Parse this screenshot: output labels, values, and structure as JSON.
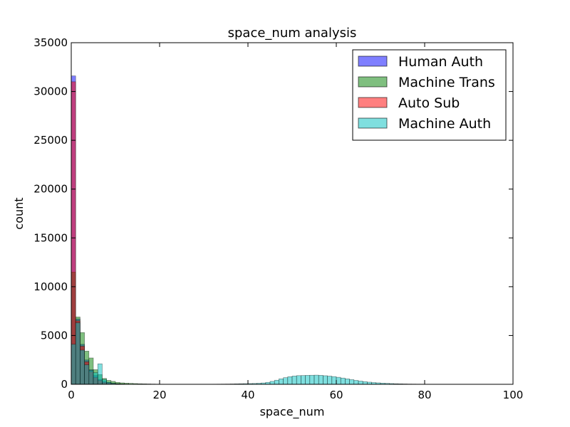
{
  "chart_data": {
    "type": "histogram",
    "title": "space_num analysis",
    "xlabel": "space_num",
    "ylabel": "count",
    "xlim": [
      0,
      100
    ],
    "ylim": [
      0,
      35000
    ],
    "x_ticks": [
      "0",
      "20",
      "40",
      "60",
      "80",
      "100"
    ],
    "y_ticks": [
      "0",
      "5000",
      "10000",
      "15000",
      "20000",
      "25000",
      "30000",
      "35000"
    ],
    "grid": false,
    "legend_position": "top-right",
    "bin_width": 1,
    "bin_starts": [
      0,
      1,
      2,
      3,
      4,
      5,
      6,
      7,
      8,
      9,
      10,
      11,
      12,
      13,
      14,
      15,
      16,
      17,
      18,
      19,
      20,
      21,
      22,
      23,
      24,
      25,
      26,
      27,
      28,
      29,
      30,
      31,
      32,
      33,
      34,
      35,
      36,
      37,
      38,
      39,
      40,
      41,
      42,
      43,
      44,
      45,
      46,
      47,
      48,
      49,
      50,
      51,
      52,
      53,
      54,
      55,
      56,
      57,
      58,
      59,
      60,
      61,
      62,
      63,
      64,
      65,
      66,
      67,
      68,
      69,
      70,
      71,
      72,
      73,
      74,
      75,
      76,
      77,
      78,
      79,
      80,
      81,
      82,
      83,
      84,
      85,
      86,
      87,
      88,
      89,
      90,
      91,
      92,
      93,
      94,
      95,
      96,
      97,
      98,
      99
    ],
    "series": [
      {
        "name": "Human Auth",
        "color": "#0000ff",
        "values": [
          31600,
          6700,
          4100,
          2500,
          1500,
          900,
          500,
          300,
          180,
          110,
          70,
          40,
          25,
          15,
          10,
          6,
          4,
          3,
          2,
          1,
          0,
          0,
          0,
          0,
          0,
          0,
          0,
          0,
          0,
          0,
          0,
          0,
          0,
          0,
          0,
          0,
          0,
          0,
          0,
          0,
          0,
          0,
          0,
          0,
          0,
          0,
          0,
          0,
          0,
          0,
          0,
          0,
          0,
          0,
          0,
          0,
          0,
          0,
          0,
          0,
          0,
          0,
          0,
          0,
          0,
          0,
          0,
          0,
          0,
          0,
          0,
          0,
          0,
          0,
          0,
          0,
          0,
          0,
          0,
          0,
          0,
          0,
          0,
          0,
          0,
          0,
          0,
          0,
          0,
          0,
          0,
          0,
          0,
          0,
          0,
          0,
          0,
          0,
          0,
          0
        ]
      },
      {
        "name": "Machine Trans",
        "color": "#008000",
        "values": [
          11500,
          6900,
          5300,
          3400,
          2700,
          1500,
          1000,
          600,
          400,
          300,
          200,
          150,
          120,
          100,
          80,
          60,
          50,
          40,
          30,
          20,
          15,
          10,
          8,
          6,
          5,
          4,
          3,
          2,
          2,
          1,
          1,
          1,
          0,
          0,
          0,
          0,
          0,
          0,
          0,
          0,
          0,
          0,
          0,
          0,
          0,
          0,
          0,
          0,
          0,
          0,
          0,
          0,
          0,
          0,
          0,
          0,
          0,
          0,
          0,
          0,
          0,
          0,
          0,
          0,
          0,
          0,
          0,
          0,
          0,
          0,
          0,
          0,
          0,
          0,
          0,
          0,
          0,
          0,
          0,
          0,
          0,
          0,
          0,
          0,
          0,
          0,
          0,
          0,
          0,
          0,
          0,
          0,
          0,
          0,
          0,
          0,
          0,
          0,
          0,
          0
        ]
      },
      {
        "name": "Auto Sub",
        "color": "#ff0000",
        "values": [
          31000,
          6500,
          3900,
          2300,
          1300,
          700,
          400,
          200,
          120,
          70,
          40,
          20,
          10,
          5,
          3,
          2,
          1,
          0,
          0,
          0,
          0,
          0,
          0,
          0,
          0,
          0,
          0,
          0,
          0,
          0,
          0,
          0,
          0,
          0,
          0,
          0,
          0,
          0,
          0,
          0,
          0,
          0,
          0,
          0,
          0,
          0,
          0,
          0,
          0,
          0,
          0,
          0,
          0,
          0,
          0,
          0,
          0,
          0,
          0,
          0,
          0,
          0,
          0,
          0,
          0,
          0,
          0,
          0,
          0,
          0,
          0,
          0,
          0,
          0,
          0,
          0,
          0,
          0,
          0,
          0,
          0,
          0,
          0,
          0,
          0,
          0,
          0,
          0,
          0,
          0,
          0,
          0,
          0,
          0,
          0,
          0,
          0,
          0,
          0,
          0
        ]
      },
      {
        "name": "Machine Auth",
        "color": "#00c0c0",
        "values": [
          4100,
          6300,
          3500,
          2000,
          1400,
          1200,
          2100,
          500,
          200,
          100,
          50,
          30,
          20,
          10,
          5,
          3,
          2,
          1,
          1,
          0,
          0,
          0,
          0,
          0,
          0,
          0,
          0,
          0,
          0,
          0,
          0,
          10,
          15,
          20,
          25,
          30,
          40,
          50,
          60,
          70,
          80,
          90,
          110,
          140,
          200,
          300,
          420,
          560,
          680,
          780,
          850,
          890,
          900,
          920,
          930,
          940,
          920,
          880,
          840,
          790,
          720,
          640,
          560,
          480,
          400,
          330,
          270,
          220,
          180,
          150,
          120,
          100,
          80,
          60,
          50,
          40,
          30,
          25,
          20,
          15,
          10,
          8,
          6,
          5,
          4,
          3,
          3,
          2,
          2,
          2,
          1,
          1,
          1,
          1,
          1,
          0,
          0,
          0,
          0,
          0
        ]
      }
    ]
  }
}
